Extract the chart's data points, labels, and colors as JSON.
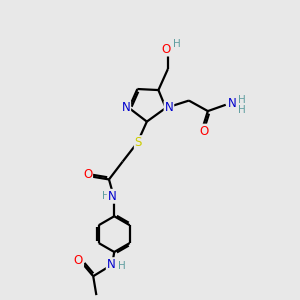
{
  "background_color": "#e8e8e8",
  "atom_colors": {
    "C": "#000000",
    "H": "#5f9ea0",
    "N": "#0000cd",
    "O": "#ff0000",
    "S": "#cccc00"
  },
  "bond_color": "#000000",
  "bond_width": 1.6,
  "font_size_atom": 8.5,
  "figsize": [
    3.0,
    3.0
  ],
  "dpi": 100
}
